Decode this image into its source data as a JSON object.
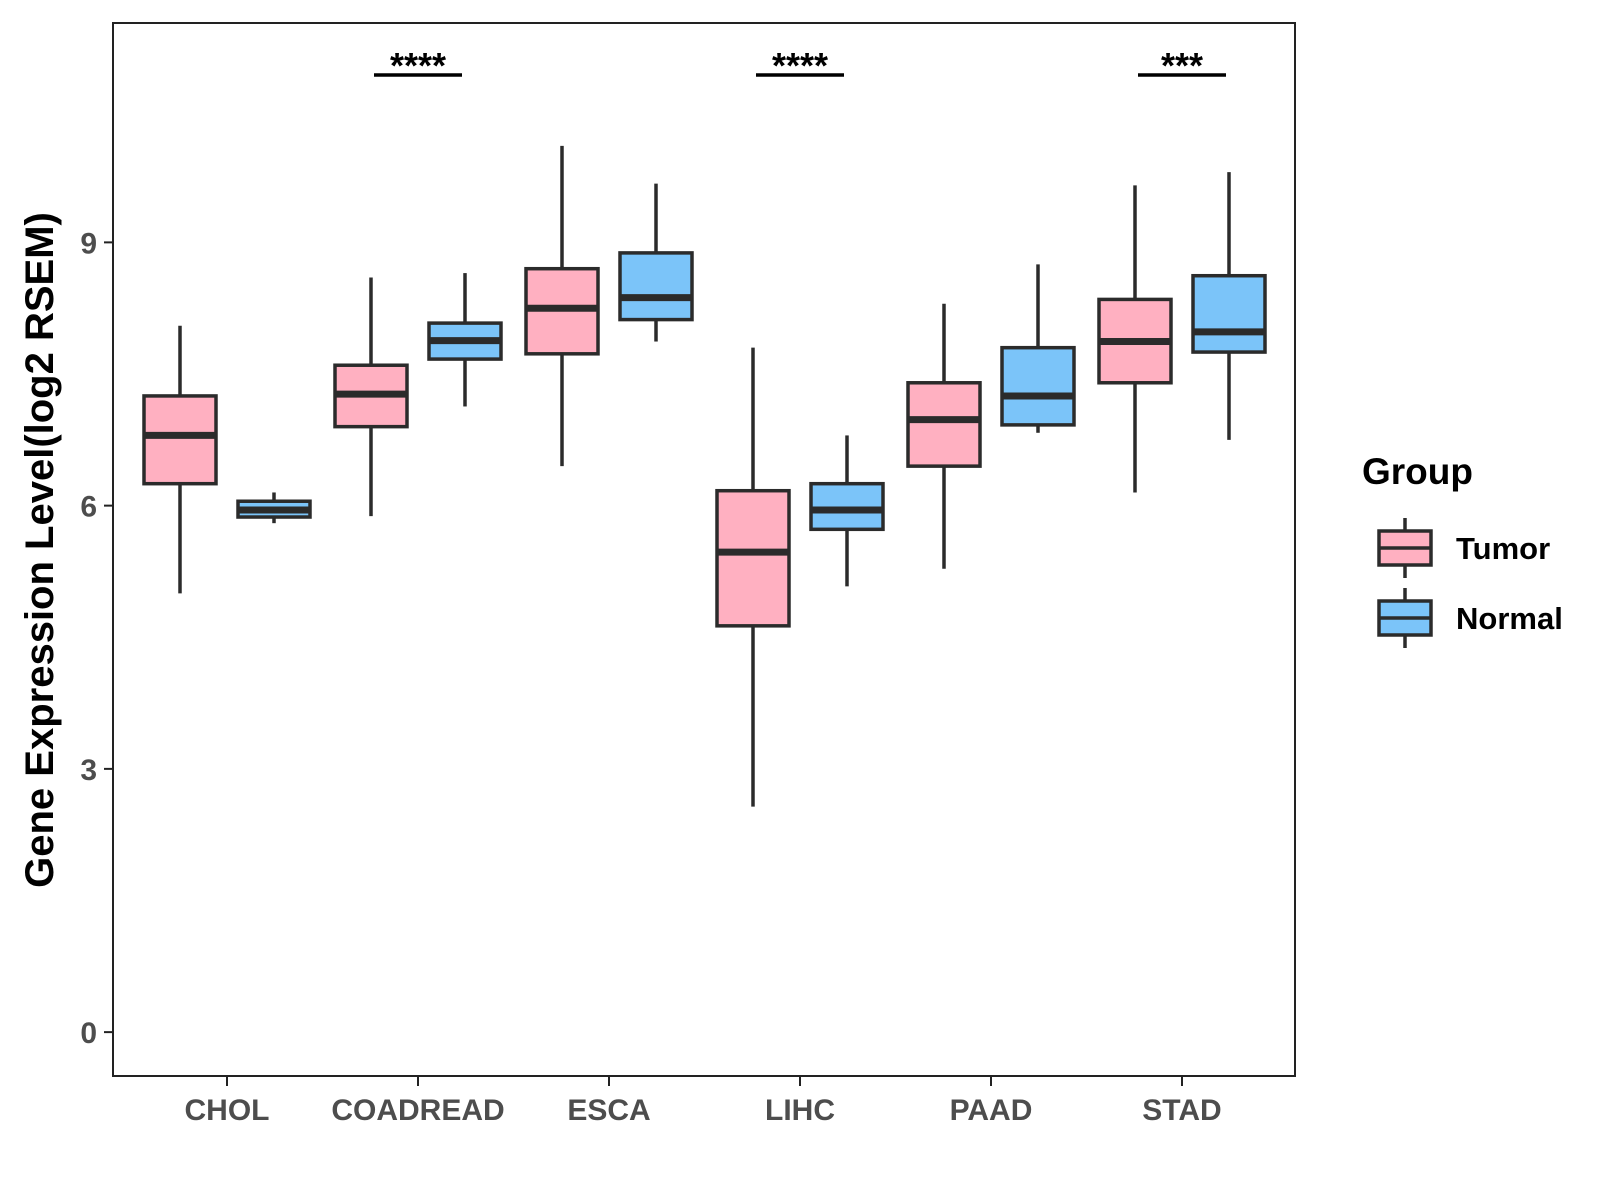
{
  "chart_data": {
    "type": "boxplot",
    "title": "",
    "xlabel": "",
    "ylabel": "Gene Expression Level(log2 RSEM)",
    "ylim": [
      -0.5,
      11.5
    ],
    "yticks": [
      0,
      3,
      6,
      9
    ],
    "categories": [
      "CHOL",
      "COADREAD",
      "ESCA",
      "LIHC",
      "PAAD",
      "STAD"
    ],
    "legend": {
      "title": "Group",
      "placement": "right",
      "entries": [
        "Tumor",
        "Normal"
      ]
    },
    "series": [
      {
        "name": "Tumor",
        "color": "#FFB0C1",
        "boxes": [
          {
            "category": "CHOL",
            "min": 5.0,
            "q1": 6.25,
            "median": 6.8,
            "q3": 7.25,
            "max": 8.05
          },
          {
            "category": "COADREAD",
            "min": 5.88,
            "q1": 6.9,
            "median": 7.27,
            "q3": 7.6,
            "max": 8.6
          },
          {
            "category": "ESCA",
            "min": 6.45,
            "q1": 7.73,
            "median": 8.25,
            "q3": 8.7,
            "max": 10.1
          },
          {
            "category": "LIHC",
            "min": 2.57,
            "q1": 4.63,
            "median": 5.47,
            "q3": 6.17,
            "max": 7.8
          },
          {
            "category": "PAAD",
            "min": 5.28,
            "q1": 6.45,
            "median": 6.98,
            "q3": 7.4,
            "max": 8.3
          },
          {
            "category": "STAD",
            "min": 6.15,
            "q1": 7.4,
            "median": 7.87,
            "q3": 8.35,
            "max": 9.65
          }
        ]
      },
      {
        "name": "Normal",
        "color": "#7BC4F9",
        "boxes": [
          {
            "category": "CHOL",
            "min": 5.8,
            "q1": 5.87,
            "median": 5.95,
            "q3": 6.05,
            "max": 6.15
          },
          {
            "category": "COADREAD",
            "min": 7.13,
            "q1": 7.67,
            "median": 7.88,
            "q3": 8.08,
            "max": 8.65
          },
          {
            "category": "ESCA",
            "min": 7.87,
            "q1": 8.12,
            "median": 8.37,
            "q3": 8.88,
            "max": 9.67
          },
          {
            "category": "LIHC",
            "min": 5.08,
            "q1": 5.73,
            "median": 5.95,
            "q3": 6.25,
            "max": 6.8
          },
          {
            "category": "PAAD",
            "min": 6.83,
            "q1": 6.92,
            "median": 7.25,
            "q3": 7.8,
            "max": 8.75
          },
          {
            "category": "STAD",
            "min": 6.75,
            "q1": 7.75,
            "median": 7.98,
            "q3": 8.62,
            "max": 9.8
          }
        ]
      }
    ],
    "significance": [
      {
        "category": "COADREAD",
        "label": "****"
      },
      {
        "category": "LIHC",
        "label": "****"
      },
      {
        "category": "STAD",
        "label": "***"
      }
    ]
  }
}
